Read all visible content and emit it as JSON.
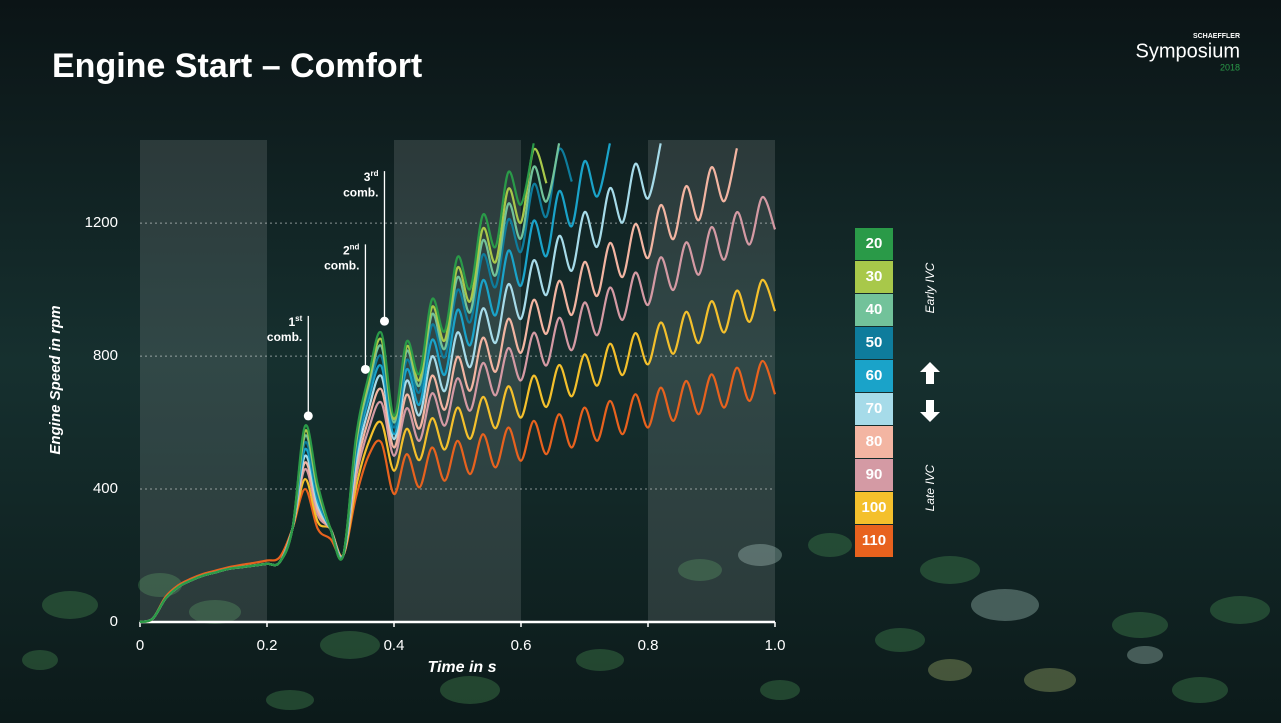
{
  "header": {
    "title": "Engine Start – Comfort",
    "brand": "SCHAEFFLER",
    "event": "Symposium",
    "year": "2018"
  },
  "chart_data": {
    "type": "line",
    "xlabel": "Time in s",
    "ylabel": "Engine Speed in rpm",
    "xlim": [
      0,
      1
    ],
    "ylim": [
      0,
      1450
    ],
    "xticks": [
      0,
      0.2,
      0.4,
      0.6,
      0.8,
      {
        "value": 1,
        "label": "1.0"
      }
    ],
    "yticks": [
      0,
      400,
      800,
      1200
    ],
    "grid": true,
    "legend_labels": {
      "top": "Early IVC",
      "bottom": "Late IVC"
    },
    "annotations": [
      {
        "number": "1",
        "suffix": "st",
        "label": "comb.",
        "x": 0.265,
        "y": 620
      },
      {
        "number": "2",
        "suffix": "nd",
        "label": "comb.",
        "x": 0.355,
        "y": 760
      },
      {
        "number": "3",
        "suffix": "rd",
        "label": "comb.",
        "x": 0.385,
        "y": 905
      }
    ],
    "x": [
      0,
      0.02,
      0.04,
      0.06,
      0.08,
      0.1,
      0.12,
      0.14,
      0.16,
      0.18,
      0.2,
      0.22,
      0.24,
      0.26,
      0.28,
      0.3,
      0.32,
      0.34,
      0.36,
      0.38,
      0.4,
      0.42,
      0.44,
      0.46,
      0.48,
      0.5,
      0.52,
      0.54,
      0.56,
      0.58,
      0.6,
      0.62,
      0.64,
      0.66,
      0.68,
      0.7,
      0.72,
      0.74,
      0.76,
      0.78,
      0.8,
      0.82,
      0.84,
      0.86,
      0.88,
      0.9,
      0.92,
      0.94,
      0.96,
      0.98,
      1
    ],
    "series": [
      {
        "name": "20",
        "color": "#2a9a48",
        "values": [
          0,
          10,
          70,
          105,
          125,
          140,
          150,
          160,
          165,
          170,
          175,
          180,
          280,
          590,
          413,
          280,
          200,
          555,
          740,
          870,
          620,
          844,
          747,
          971,
          875,
          1098,
          1002,
          1225,
          1129,
          1353,
          1256,
          1440,
          null,
          null,
          null,
          null,
          null,
          null,
          null,
          null,
          null,
          null,
          null,
          null,
          null,
          null,
          null,
          null,
          null,
          null,
          null
        ]
      },
      {
        "name": "30",
        "color": "#a8c84a",
        "values": [
          0,
          10,
          70,
          105,
          125,
          140,
          150,
          160,
          165,
          170,
          175,
          180,
          280,
          575,
          403,
          280,
          200,
          544,
          725,
          850,
          610,
          829,
          728,
          948,
          847,
          1066,
          965,
          1184,
          1083,
          1303,
          1202,
          1421,
          1320,
          null,
          null,
          null,
          null,
          null,
          null,
          null,
          null,
          null,
          null,
          null,
          null,
          null,
          null,
          null,
          null,
          null,
          null
        ]
      },
      {
        "name": "40",
        "color": "#72c29a",
        "values": [
          0,
          10,
          70,
          105,
          125,
          140,
          150,
          160,
          165,
          170,
          175,
          180,
          280,
          560,
          392,
          280,
          200,
          533,
          710,
          830,
          600,
          815,
          711,
          926,
          822,
          1037,
          932,
          1148,
          1043,
          1258,
          1154,
          1369,
          1265,
          1440,
          null,
          null,
          null,
          null,
          null,
          null,
          null,
          null,
          null,
          null,
          null,
          null,
          null,
          null,
          null,
          null,
          null
        ]
      },
      {
        "name": "50",
        "color": "#0e7c9c",
        "values": [
          0,
          10,
          70,
          105,
          125,
          140,
          150,
          160,
          165,
          170,
          175,
          180,
          280,
          540,
          378,
          280,
          200,
          518,
          690,
          800,
          585,
          788,
          691,
          894,
          797,
          999,
          902,
          1105,
          1008,
          1211,
          1114,
          1317,
          1219,
          1422,
          1325,
          null,
          null,
          null,
          null,
          null,
          null,
          null,
          null,
          null,
          null,
          null,
          null,
          null,
          null,
          null,
          null
        ]
      },
      {
        "name": "60",
        "color": "#1aa3c9",
        "values": [
          0,
          10,
          70,
          105,
          125,
          140,
          150,
          160,
          165,
          170,
          175,
          180,
          280,
          520,
          364,
          280,
          200,
          503,
          670,
          770,
          565,
          760,
          654,
          849,
          744,
          939,
          833,
          1028,
          923,
          1117,
          1012,
          1207,
          1101,
          1296,
          1191,
          1386,
          1280,
          1440,
          null,
          null,
          null,
          null,
          null,
          null,
          null,
          null,
          null,
          null,
          null,
          null,
          null
        ]
      },
      {
        "name": "70",
        "color": "#a6dbe9",
        "values": [
          0,
          10,
          70,
          105,
          125,
          140,
          150,
          160,
          165,
          170,
          175,
          180,
          280,
          500,
          350,
          280,
          200,
          480,
          640,
          740,
          550,
          726,
          622,
          799,
          695,
          871,
          767,
          943,
          840,
          1016,
          912,
          1088,
          984,
          1161,
          1057,
          1233,
          1129,
          1305,
          1202,
          1378,
          1274,
          1440,
          null,
          null,
          null,
          null,
          null,
          null,
          null,
          null,
          null
        ]
      },
      {
        "name": "80",
        "color": "#f3b5a2",
        "values": [
          0,
          10,
          70,
          105,
          125,
          140,
          150,
          160,
          165,
          170,
          175,
          180,
          280,
          480,
          336,
          280,
          200,
          458,
          610,
          700,
          525,
          684,
          582,
          741,
          639,
          798,
          696,
          855,
          753,
          912,
          810,
          969,
          867,
          1026,
          924,
          1083,
          981,
          1140,
          1038,
          1197,
          1095,
          1254,
          1152,
          1311,
          1209,
          1368,
          1266,
          1425,
          null,
          null,
          null
        ]
      },
      {
        "name": "90",
        "color": "#d49aa4",
        "values": [
          0,
          10,
          70,
          105,
          125,
          140,
          150,
          160,
          165,
          170,
          175,
          180,
          280,
          460,
          322,
          280,
          200,
          435,
          580,
          660,
          500,
          643,
          545,
          688,
          591,
          733,
          636,
          779,
          682,
          824,
          727,
          870,
          772,
          915,
          818,
          961,
          863,
          1006,
          909,
          1051,
          954,
          1097,
          999,
          1142,
          1045,
          1188,
          1090,
          1233,
          1136,
          1278,
          1181
        ]
      },
      {
        "name": "100",
        "color": "#f4c02c",
        "values": [
          0,
          10,
          70,
          105,
          125,
          140,
          150,
          160,
          165,
          170,
          175,
          180,
          280,
          430,
          301,
          280,
          200,
          405,
          540,
          600,
          455,
          581,
          487,
          613,
          519,
          645,
          551,
          677,
          583,
          709,
          615,
          741,
          647,
          773,
          679,
          805,
          711,
          837,
          743,
          869,
          775,
          901,
          807,
          933,
          839,
          965,
          871,
          997,
          903,
          1029,
          935
        ]
      },
      {
        "name": "110",
        "color": "#e8621e",
        "values": [
          0,
          10,
          75,
          110,
          130,
          145,
          155,
          165,
          172,
          178,
          185,
          195,
          280,
          400,
          280,
          250,
          200,
          375,
          500,
          540,
          385,
          505,
          405,
          525,
          425,
          545,
          445,
          565,
          465,
          585,
          485,
          605,
          505,
          625,
          525,
          645,
          545,
          665,
          565,
          685,
          585,
          705,
          605,
          725,
          625,
          745,
          645,
          765,
          665,
          785,
          685
        ]
      }
    ]
  }
}
